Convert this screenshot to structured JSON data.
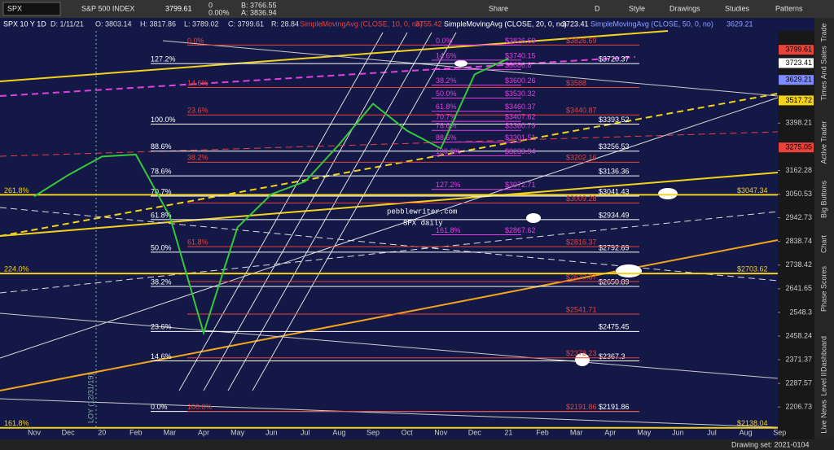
{
  "toolbar": {
    "symbol": "SPX",
    "name": "S&P 500 INDEX",
    "last": "3799.61",
    "change": "0",
    "change_pct": "0.00%",
    "bid": "B: 3766.55",
    "ask": "A: 3836.94",
    "share": "Share",
    "period": "D",
    "style": "Style",
    "drawings": "Drawings",
    "studies": "Studies",
    "patterns": "Patterns"
  },
  "header": {
    "symbol": "SPX 10 Y 1D",
    "date": "D: 1/11/21",
    "open": "O: 3803.14",
    "high": "H: 3817.86",
    "low": "L: 3789.02",
    "close": "C: 3799.61",
    "range": "R: 28.84",
    "sma10": "SimpleMovingAvg (CLOSE, 10, 0, no)",
    "sma10_value": "3755.42",
    "sma20": "SimpleMovingAvg (CLOSE, 20, 0, no)",
    "sma20_value": "3723.41",
    "sma50": "SimpleMovingAvg (CLOSE, 50, 0, no)",
    "sma50_value": "3629.21"
  },
  "chart_data": {
    "type": "line",
    "log_scale": true,
    "annotations": [
      "pebblewriter.com",
      "SPX daily",
      "LOY (12/31/19)"
    ],
    "categories": [
      "Nov",
      "Dec",
      "20",
      "Feb",
      "Mar",
      "Apr",
      "May",
      "Jun",
      "Jul",
      "Aug",
      "Sep",
      "Oct",
      "Nov",
      "Dec",
      "21",
      "Feb",
      "Mar",
      "Apr",
      "May",
      "Jun",
      "Jul",
      "Aug",
      "Sep"
    ],
    "series": [
      {
        "name": "SPX",
        "color": "#35c93a",
        "values": [
          3040,
          3140,
          3230,
          3240,
          2950,
          2470,
          2900,
          3050,
          3110,
          3290,
          3500,
          3360,
          3270,
          3660,
          3750,
          null,
          null,
          null,
          null,
          null,
          null,
          null,
          null
        ]
      }
    ],
    "ylim": [
      2140,
      3910
    ],
    "yticks": [
      3398.21,
      3162.28,
      3050.53,
      2942.73,
      2838.74,
      2738.42,
      2641.65,
      2548.3,
      2458.24,
      2371.37,
      2287.57,
      2206.73
    ],
    "price_tags": [
      3799.61,
      3723.41,
      3629.21,
      3517.72,
      3275.05
    ],
    "price_tag_colors": [
      "#e8433a",
      "#ffffff",
      "#7f8cff",
      "#f2d21b",
      "#e8433a"
    ],
    "level_sets": [
      {
        "color": "#ffffff",
        "levels": [
          {
            "value": 3720.37,
            "label": "$3720.37",
            "pct": "127.2%"
          },
          {
            "value": 3393.52,
            "label": "$3393.52",
            "pct": "100.0%"
          },
          {
            "value": 3256.53,
            "label": "$3256.53",
            "pct": "88.6%"
          },
          {
            "value": 3136.36,
            "label": "$3136.36",
            "pct": "78.6%"
          },
          {
            "value": 3041.43,
            "label": "$3041.43",
            "pct": "70.7%"
          },
          {
            "value": 2934.49,
            "label": "$2934.49",
            "pct": "61.8%"
          },
          {
            "value": 2792.69,
            "label": "$2792.69",
            "pct": "50.0%"
          },
          {
            "value": 2650.89,
            "label": "$2650.89",
            "pct": "38.2%"
          },
          {
            "value": 2475.45,
            "label": "$2475.45",
            "pct": "23.6%"
          },
          {
            "value": 2367.3,
            "label": "$2367.3",
            "pct": "14.6%"
          },
          {
            "value": 2191.86,
            "label": "$2191.86",
            "pct": "0.0%"
          }
        ]
      },
      {
        "color": "#e8433a",
        "levels": [
          {
            "value": 3826.69,
            "label": "$3826.69",
            "pct": "0.0%"
          },
          {
            "value": 3588,
            "label": "$3588",
            "pct": "14.6%"
          },
          {
            "value": 3440.87,
            "label": "$3440.87",
            "pct": "23.6%"
          },
          {
            "value": 3202.16,
            "label": "$3202.16",
            "pct": "38.2%"
          },
          {
            "value": 3009.28,
            "label": "$3009.28"
          },
          {
            "value": 2816.37,
            "label": "$2816.37",
            "pct": "61.8%"
          },
          {
            "value": 2670.87,
            "label": "$2670.87"
          },
          {
            "value": 2541.71,
            "label": "$2541.71"
          },
          {
            "value": 2378.23,
            "label": "$2378.23"
          },
          {
            "value": 2191.86,
            "label": "$2191.86",
            "pct": "100.0%"
          }
        ]
      },
      {
        "color": "#e040e0",
        "levels": [
          {
            "value": 3826.69,
            "label": "$3826.69",
            "pct": "0.0%"
          },
          {
            "value": 3740.15,
            "label": "$3740.15",
            "pct": "14.6%"
          },
          {
            "value": 3686.8,
            "label": "$3686.8"
          },
          {
            "value": 3600.26,
            "label": "$3600.26",
            "pct": "38.2%"
          },
          {
            "value": 3530.32,
            "label": "$3530.32",
            "pct": "50.0%"
          },
          {
            "value": 3460.37,
            "label": "$3460.37",
            "pct": "61.8%"
          },
          {
            "value": 3407.62,
            "label": "$3407.62",
            "pct": "70.7%"
          },
          {
            "value": 3360.79,
            "label": "$3360.79",
            "pct": "78.6%"
          },
          {
            "value": 3301.51,
            "label": "$3301.51",
            "pct": "88.6%"
          },
          {
            "value": 3233.94,
            "label": "$3233.94",
            "pct": "100.0%"
          },
          {
            "value": 3072.71,
            "label": "$3072.71",
            "pct": "127.2%"
          },
          {
            "value": 2867.62,
            "label": "$2867.62",
            "pct": "161.8%"
          }
        ]
      },
      {
        "color": "#f2d21b",
        "levels": [
          {
            "value": 3047.34,
            "label": "$3047.34",
            "pct": "261.8%"
          },
          {
            "value": 2703.62,
            "label": "$2703.62",
            "pct": "224.0%"
          },
          {
            "value": 2138.04,
            "label": "$2138.04",
            "pct": "161.8%"
          }
        ]
      }
    ]
  },
  "sidebar": [
    "Trade",
    "Times And Sales",
    "Active Trader",
    "Big Buttons",
    "Chart",
    "Phase Scores",
    "Dashboard",
    "Level II",
    "Live News"
  ],
  "status": "Drawing set: 2021-0104"
}
